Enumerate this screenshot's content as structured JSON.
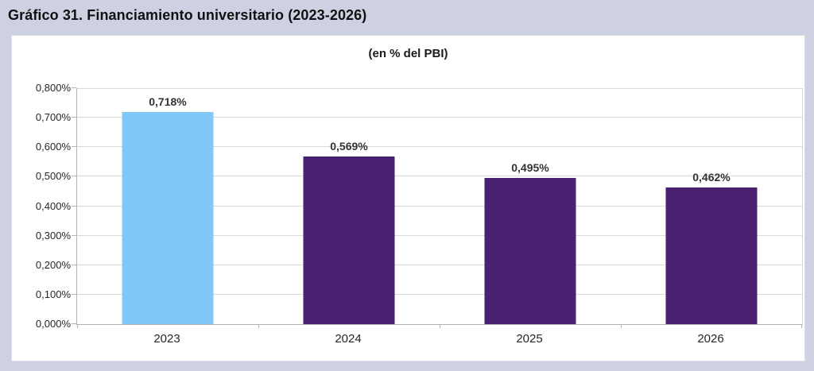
{
  "chart_data": {
    "type": "bar",
    "title": "Gráfico 31. Financiamiento universitario (2023-2026)",
    "subtitle": "(en % del PBI)",
    "categories": [
      "2023",
      "2024",
      "2025",
      "2026"
    ],
    "values": [
      0.718,
      0.569,
      0.495,
      0.462
    ],
    "value_labels": [
      "0,718%",
      "0,569%",
      "0,495%",
      "0,462%"
    ],
    "bar_colors": [
      "#80C8FA",
      "#4A2170",
      "#4A2170",
      "#4A2170"
    ],
    "xlabel": "",
    "ylabel": "",
    "ylim": [
      0,
      0.8
    ],
    "y_ticks": {
      "values": [
        0,
        0.1,
        0.2,
        0.3,
        0.4,
        0.5,
        0.6,
        0.7,
        0.8
      ],
      "labels": [
        "0,000%",
        "0,100%",
        "0,200%",
        "0,300%",
        "0,400%",
        "0,500%",
        "0,600%",
        "0,700%",
        "0,800%"
      ]
    },
    "grid": "horizontal",
    "legend": "none",
    "colors": {
      "highlight_bar": "#80C8FA",
      "default_bar": "#4A2170",
      "gridline": "#D9D9D9",
      "axis": "#B3B3B3",
      "panel_background": "#FFFFFF",
      "page_background": "#CDD1E1"
    }
  }
}
